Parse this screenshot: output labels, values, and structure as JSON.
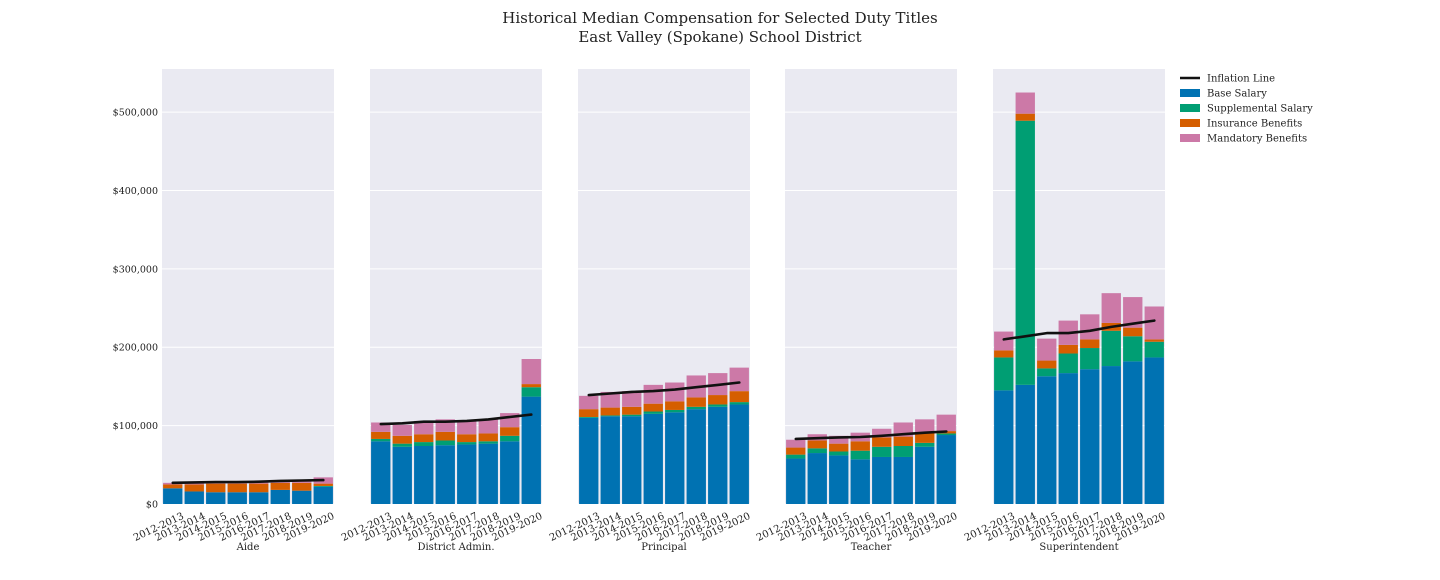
{
  "chart_data": {
    "type": "bar",
    "title": "Historical Median Compensation for Selected Duty Titles",
    "subtitle": "East Valley (Spokane) School District",
    "categories": [
      "2012-2013",
      "2013-2014",
      "2014-2015",
      "2015-2016",
      "2016-2017",
      "2017-2018",
      "2018-2019",
      "2019-2020"
    ],
    "y_tick_labels": [
      "$0",
      "$100,000",
      "$200,000",
      "$300,000",
      "$400,000",
      "$500,000"
    ],
    "ylim": [
      0,
      555000
    ],
    "grid": true,
    "legend_position": "outside-right",
    "stacked": true,
    "legend": [
      {
        "name": "Inflation Line",
        "kind": "line",
        "color": "#111111"
      },
      {
        "name": "Base Salary",
        "kind": "bar",
        "color": "#0072b2"
      },
      {
        "name": "Supplemental Salary",
        "kind": "bar",
        "color": "#009e73"
      },
      {
        "name": "Insurance Benefits",
        "kind": "bar",
        "color": "#d55e00"
      },
      {
        "name": "Mandatory Benefits",
        "kind": "bar",
        "color": "#cc79a7"
      }
    ],
    "panels": [
      {
        "xlabel": "Aide",
        "series": [
          {
            "name": "Base Salary",
            "values": [
              20000,
              16000,
              15000,
              15000,
              15000,
              18000,
              17000,
              22000
            ]
          },
          {
            "name": "Supplemental Salary",
            "values": [
              0,
              0,
              0,
              0,
              0,
              0,
              0,
              1000
            ]
          },
          {
            "name": "Insurance Benefits",
            "values": [
              5000,
              9000,
              11000,
              11000,
              11000,
              9000,
              10000,
              3000
            ]
          },
          {
            "name": "Mandatory Benefits",
            "values": [
              2000,
              2000,
              2000,
              2000,
              2000,
              3000,
              3000,
              8000
            ]
          }
        ],
        "inflation": [
          27000,
          27500,
          28000,
          28000,
          28500,
          29500,
          30000,
          30500
        ]
      },
      {
        "xlabel": "District Admin.",
        "series": [
          {
            "name": "Base Salary",
            "values": [
              80000,
              73000,
              74000,
              75000,
              76000,
              77000,
              80000,
              137000
            ]
          },
          {
            "name": "Supplemental Salary",
            "values": [
              3000,
              4000,
              5000,
              6000,
              3000,
              3000,
              7000,
              12000
            ]
          },
          {
            "name": "Insurance Benefits",
            "values": [
              9000,
              10000,
              10000,
              11000,
              10000,
              10000,
              11000,
              4000
            ]
          },
          {
            "name": "Mandatory Benefits",
            "values": [
              12000,
              14000,
              17000,
              16000,
              17000,
              18000,
              18000,
              32000
            ]
          }
        ],
        "inflation": [
          102000,
          103000,
          105000,
          105000,
          106000,
          108000,
          111000,
          114000
        ]
      },
      {
        "xlabel": "Principal",
        "series": [
          {
            "name": "Base Salary",
            "values": [
              110000,
              112000,
              112000,
              115000,
              117000,
              121000,
              124000,
              127000
            ]
          },
          {
            "name": "Supplemental Salary",
            "values": [
              1000,
              1000,
              2000,
              3000,
              3000,
              3000,
              3000,
              3000
            ]
          },
          {
            "name": "Insurance Benefits",
            "values": [
              10000,
              10000,
              10000,
              10000,
              11000,
              12000,
              12000,
              14000
            ]
          },
          {
            "name": "Mandatory Benefits",
            "values": [
              17000,
              20000,
              20000,
              24000,
              24000,
              28000,
              28000,
              30000
            ]
          }
        ],
        "inflation": [
          139000,
          141000,
          143000,
          144000,
          146000,
          149000,
          152000,
          155000
        ]
      },
      {
        "xlabel": "Teacher",
        "series": [
          {
            "name": "Base Salary",
            "values": [
              58000,
              65000,
              62000,
              57000,
              60000,
              60000,
              73000,
              88000
            ]
          },
          {
            "name": "Supplemental Salary",
            "values": [
              5000,
              6000,
              5000,
              11000,
              13000,
              14000,
              5000,
              2000
            ]
          },
          {
            "name": "Insurance Benefits",
            "values": [
              9000,
              10000,
              10000,
              12000,
              12000,
              12000,
              13000,
              3000
            ]
          },
          {
            "name": "Mandatory Benefits",
            "values": [
              10000,
              8000,
              10000,
              11000,
              11000,
              18000,
              17000,
              21000
            ]
          }
        ],
        "inflation": [
          83000,
          84000,
          85000,
          85500,
          87000,
          89000,
          91000,
          92500
        ]
      },
      {
        "xlabel": "Superintendent",
        "series": [
          {
            "name": "Base Salary",
            "values": [
              145000,
              152000,
              163000,
              167000,
              172000,
              176000,
              182000,
              187000
            ]
          },
          {
            "name": "Supplemental Salary",
            "values": [
              42000,
              337000,
              10000,
              25000,
              27000,
              45000,
              32000,
              20000
            ]
          },
          {
            "name": "Insurance Benefits",
            "values": [
              9000,
              9000,
              10000,
              11000,
              11000,
              10000,
              11000,
              3000
            ]
          },
          {
            "name": "Mandatory Benefits",
            "values": [
              24000,
              27000,
              28000,
              31000,
              32000,
              38000,
              39000,
              42000
            ]
          }
        ],
        "inflation": [
          210000,
          214000,
          218000,
          218000,
          221000,
          226000,
          230000,
          234000
        ]
      }
    ]
  }
}
